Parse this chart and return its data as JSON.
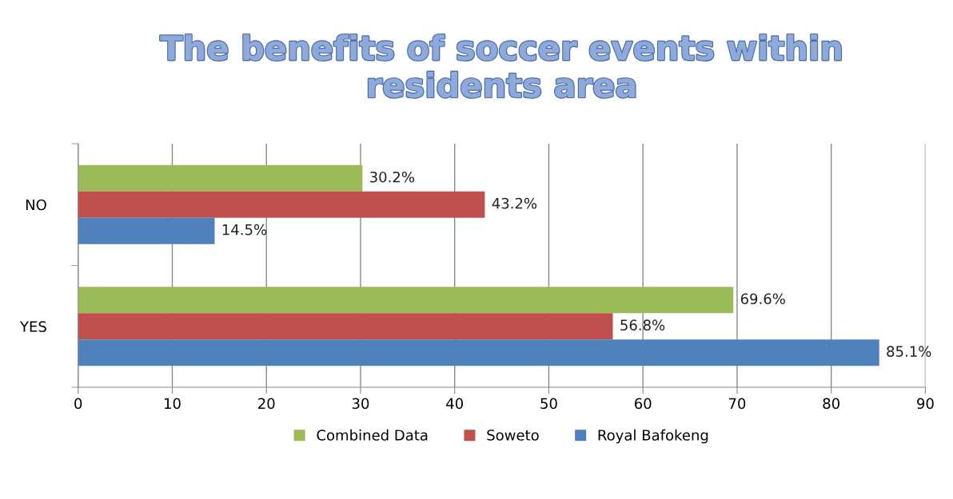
{
  "chart_data": {
    "type": "bar",
    "orientation": "horizontal",
    "title": "The benefits of soccer events within\nresidents area",
    "categories": [
      "NO",
      "YES"
    ],
    "series": [
      {
        "name": "Combined Data",
        "color": "#9bbb59",
        "values": [
          30.2,
          69.6
        ],
        "value_labels": [
          "30.2%",
          "69.6%"
        ]
      },
      {
        "name": "Soweto",
        "color": "#c0504d",
        "values": [
          43.2,
          56.8
        ],
        "value_labels": [
          "43.2%",
          "56.8%"
        ]
      },
      {
        "name": "Royal Bafokeng",
        "color": "#4f81bd",
        "values": [
          14.5,
          85.1
        ],
        "value_labels": [
          "14.5%",
          "85.1%"
        ]
      }
    ],
    "xlim": [
      0,
      90
    ],
    "xticks": [
      0,
      10,
      20,
      30,
      40,
      50,
      60,
      70,
      80,
      90
    ],
    "grid": "x",
    "legend": "bottom"
  }
}
